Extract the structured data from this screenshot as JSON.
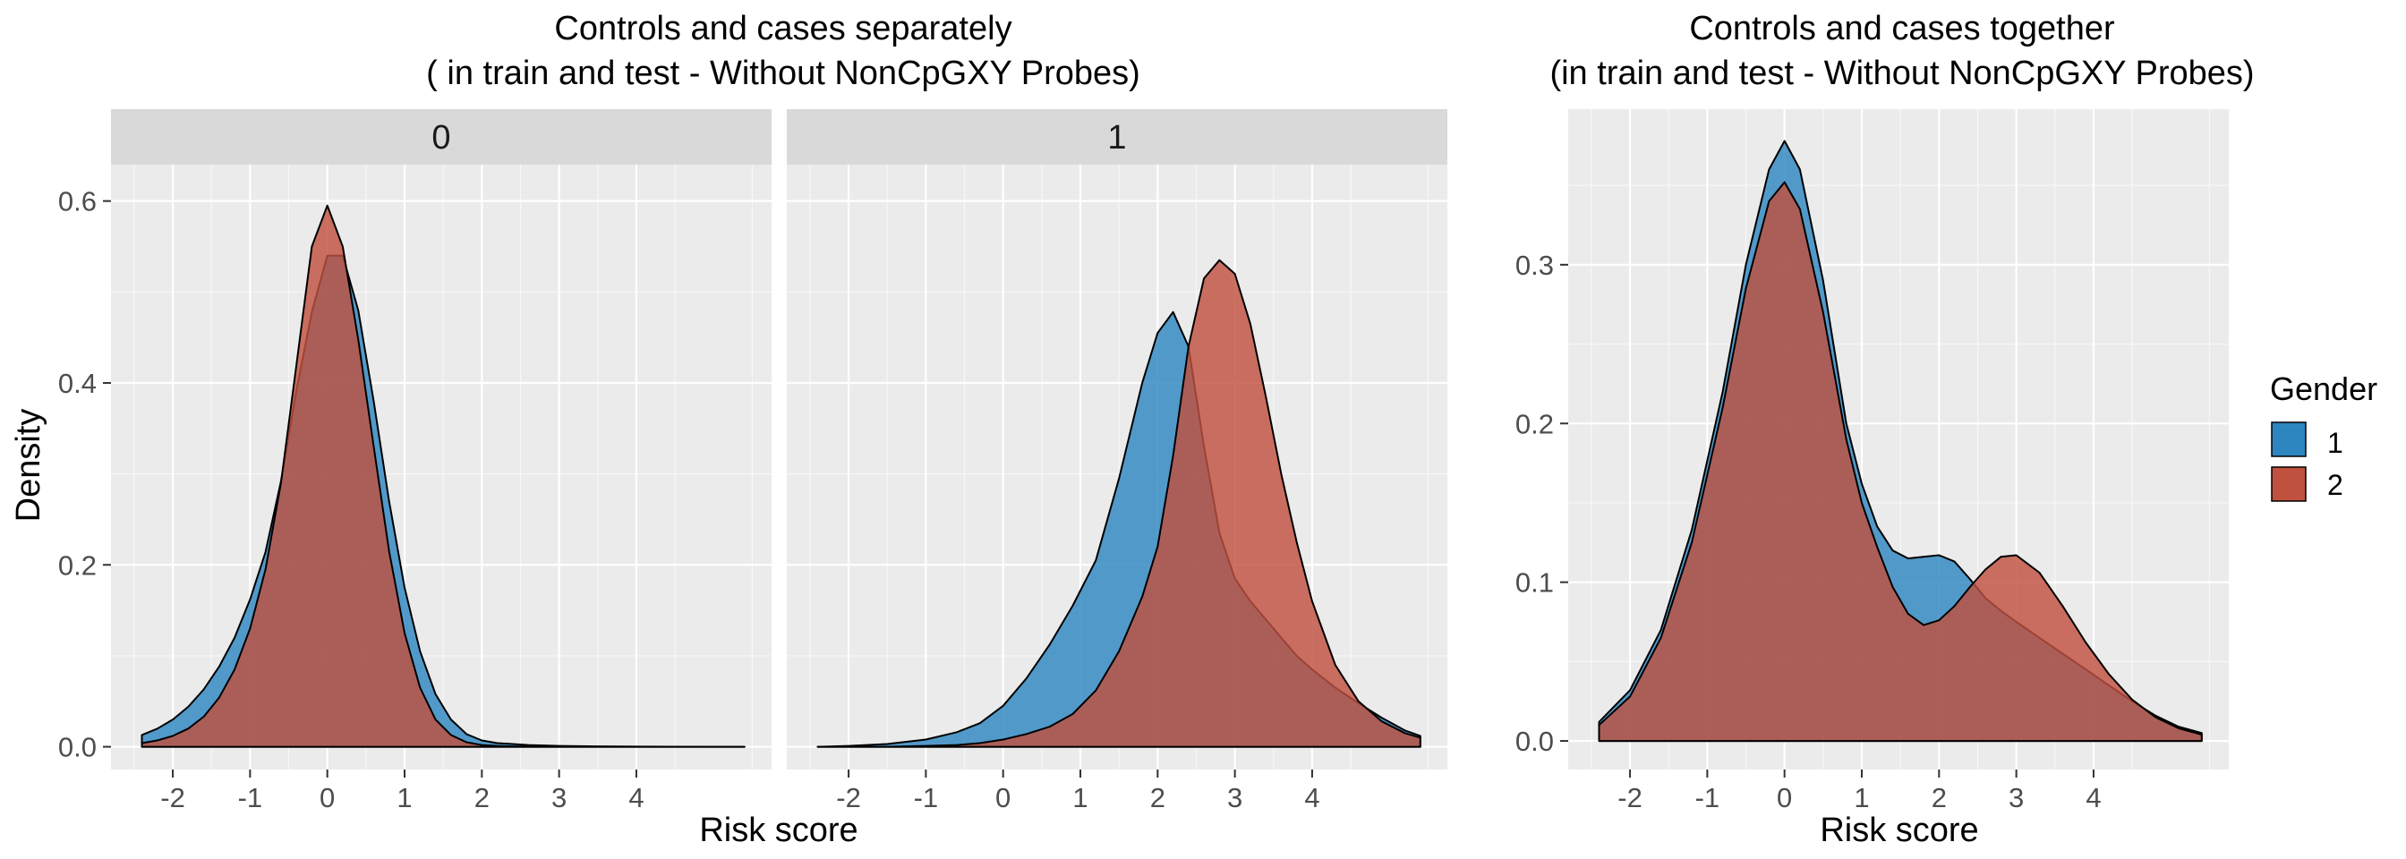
{
  "chart_data": [
    {
      "type": "area",
      "title": "Controls and cases separately\n( in train and test - Without NonCpGXY Probes)",
      "title_lines": [
        "Controls and cases separately",
        "( in train and test - Without NonCpGXY Probes)"
      ],
      "xlabel": "Risk score",
      "ylabel": "Density",
      "xlim": [
        -2.8,
        5.75
      ],
      "ylim": [
        -0.025,
        0.64
      ],
      "x_ticks": [
        -2,
        -1,
        0,
        1,
        2,
        3,
        4
      ],
      "y_ticks": [
        0.0,
        0.2,
        0.4,
        0.6
      ],
      "y_tick_labels": [
        "0.0",
        "0.2",
        "0.4",
        "0.6"
      ],
      "grid": true,
      "facets": [
        {
          "label": "0",
          "series": [
            {
              "name": "1",
              "x": [
                -2.4,
                -2.2,
                -2.0,
                -1.8,
                -1.6,
                -1.4,
                -1.2,
                -1.0,
                -0.8,
                -0.6,
                -0.4,
                -0.2,
                0.0,
                0.2,
                0.4,
                0.6,
                0.8,
                1.0,
                1.2,
                1.4,
                1.6,
                1.8,
                2.0,
                2.2,
                2.4,
                2.6,
                2.8,
                3.0,
                3.5,
                4.0,
                4.5,
                5.0,
                5.4
              ],
              "y": [
                0.013,
                0.02,
                0.03,
                0.044,
                0.063,
                0.088,
                0.12,
                0.162,
                0.214,
                0.292,
                0.392,
                0.478,
                0.54,
                0.54,
                0.48,
                0.38,
                0.27,
                0.175,
                0.105,
                0.058,
                0.03,
                0.014,
                0.007,
                0.004,
                0.003,
                0.002,
                0.0015,
                0.001,
                0.0005,
                0.0002,
                0.0001,
                0.0,
                0.0
              ]
            },
            {
              "name": "2",
              "x": [
                -2.4,
                -2.2,
                -2.0,
                -1.8,
                -1.6,
                -1.4,
                -1.2,
                -1.0,
                -0.8,
                -0.6,
                -0.4,
                -0.2,
                0.0,
                0.2,
                0.4,
                0.6,
                0.8,
                1.0,
                1.2,
                1.4,
                1.6,
                1.8,
                2.0,
                2.2,
                2.4,
                2.6,
                2.8,
                3.0,
                3.5,
                4.0,
                4.5,
                5.0,
                5.4
              ],
              "y": [
                0.004,
                0.007,
                0.012,
                0.02,
                0.033,
                0.054,
                0.085,
                0.13,
                0.195,
                0.29,
                0.42,
                0.55,
                0.595,
                0.55,
                0.448,
                0.33,
                0.215,
                0.125,
                0.065,
                0.03,
                0.013,
                0.005,
                0.002,
                0.001,
                0.0005,
                0.0003,
                0.0002,
                0.0001,
                0.0,
                0.0,
                0.0,
                0.0,
                0.0
              ]
            }
          ]
        },
        {
          "label": "1",
          "series": [
            {
              "name": "1",
              "x": [
                -2.4,
                -2.0,
                -1.5,
                -1.0,
                -0.6,
                -0.3,
                0.0,
                0.3,
                0.6,
                0.9,
                1.2,
                1.5,
                1.8,
                2.0,
                2.2,
                2.4,
                2.6,
                2.8,
                3.0,
                3.2,
                3.4,
                3.6,
                3.8,
                4.0,
                4.3,
                4.6,
                4.9,
                5.2,
                5.4
              ],
              "y": [
                0.0,
                0.001,
                0.003,
                0.008,
                0.016,
                0.026,
                0.045,
                0.075,
                0.112,
                0.155,
                0.205,
                0.295,
                0.4,
                0.455,
                0.478,
                0.44,
                0.33,
                0.235,
                0.185,
                0.16,
                0.14,
                0.12,
                0.1,
                0.085,
                0.065,
                0.048,
                0.032,
                0.018,
                0.012
              ]
            },
            {
              "name": "2",
              "x": [
                -2.4,
                -2.0,
                -1.5,
                -1.0,
                -0.6,
                -0.3,
                0.0,
                0.3,
                0.6,
                0.9,
                1.2,
                1.5,
                1.8,
                2.0,
                2.2,
                2.4,
                2.6,
                2.8,
                3.0,
                3.2,
                3.4,
                3.6,
                3.8,
                4.0,
                4.3,
                4.6,
                4.9,
                5.2,
                5.4
              ],
              "y": [
                0.0,
                0.0,
                0.0,
                0.001,
                0.002,
                0.004,
                0.008,
                0.014,
                0.022,
                0.036,
                0.062,
                0.105,
                0.165,
                0.22,
                0.32,
                0.44,
                0.515,
                0.535,
                0.52,
                0.465,
                0.385,
                0.3,
                0.225,
                0.16,
                0.09,
                0.05,
                0.028,
                0.015,
                0.01
              ]
            }
          ]
        }
      ]
    },
    {
      "type": "area",
      "title": "Controls and cases together\n(in train and test - Without NonCpGXY Probes)",
      "title_lines": [
        "Controls and cases together",
        "(in train and test - Without NonCpGXY Probes)"
      ],
      "xlabel": "Risk score",
      "ylabel": "",
      "xlim": [
        -2.8,
        5.75
      ],
      "ylim": [
        -0.018,
        0.398
      ],
      "x_ticks": [
        -2,
        -1,
        0,
        1,
        2,
        3,
        4
      ],
      "y_ticks": [
        0.0,
        0.1,
        0.2,
        0.3
      ],
      "y_tick_labels": [
        "0.0",
        "0.1",
        "0.2",
        "0.3"
      ],
      "grid": true,
      "series": [
        {
          "name": "1",
          "x": [
            -2.4,
            -2.0,
            -1.6,
            -1.2,
            -0.8,
            -0.5,
            -0.2,
            0.0,
            0.2,
            0.5,
            0.8,
            1.0,
            1.2,
            1.4,
            1.6,
            1.8,
            2.0,
            2.2,
            2.4,
            2.6,
            2.8,
            3.0,
            3.3,
            3.6,
            3.9,
            4.2,
            4.5,
            4.8,
            5.1,
            5.4
          ],
          "y": [
            0.012,
            0.032,
            0.07,
            0.133,
            0.22,
            0.3,
            0.36,
            0.378,
            0.36,
            0.29,
            0.2,
            0.162,
            0.135,
            0.12,
            0.115,
            0.116,
            0.117,
            0.113,
            0.102,
            0.09,
            0.082,
            0.075,
            0.065,
            0.055,
            0.045,
            0.035,
            0.025,
            0.016,
            0.009,
            0.005
          ]
        },
        {
          "name": "2",
          "x": [
            -2.4,
            -2.0,
            -1.6,
            -1.2,
            -0.8,
            -0.5,
            -0.2,
            0.0,
            0.2,
            0.5,
            0.8,
            1.0,
            1.2,
            1.4,
            1.6,
            1.8,
            2.0,
            2.2,
            2.4,
            2.6,
            2.8,
            3.0,
            3.3,
            3.6,
            3.9,
            4.2,
            4.5,
            4.8,
            5.1,
            5.4
          ],
          "y": [
            0.01,
            0.028,
            0.065,
            0.125,
            0.21,
            0.285,
            0.34,
            0.352,
            0.335,
            0.27,
            0.19,
            0.15,
            0.122,
            0.097,
            0.08,
            0.073,
            0.076,
            0.085,
            0.097,
            0.108,
            0.116,
            0.117,
            0.106,
            0.085,
            0.062,
            0.042,
            0.026,
            0.015,
            0.008,
            0.004
          ]
        }
      ]
    }
  ],
  "legend": {
    "title": "Gender",
    "entries": [
      {
        "label": "1",
        "color": "#2E86C1"
      },
      {
        "label": "2",
        "color": "#C0513F"
      }
    ],
    "placement": "right"
  },
  "colors": {
    "series_1": "#2E86C1",
    "series_2": "#C0513F",
    "panel_bg": "#EBEBEB",
    "grid": "#FFFFFF",
    "strip_bg": "#D9D9D9",
    "axis_text": "#4D4D4D"
  }
}
